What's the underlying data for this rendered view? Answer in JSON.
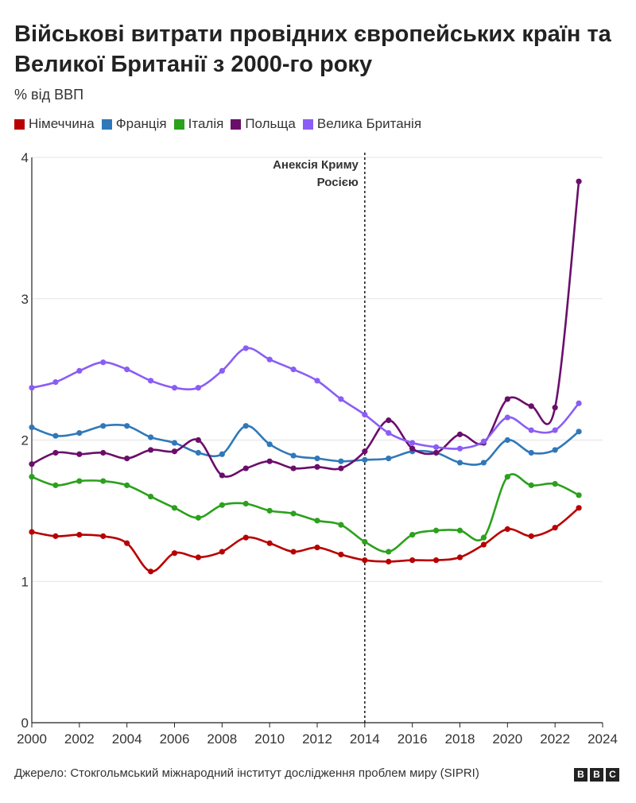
{
  "header": {
    "title": "Військові витрати провідних європейських країн та Великої Британії з 2000-го року",
    "subtitle": "% від ВВП"
  },
  "footer": {
    "source": "Джерело: Стокгольмський міжнародний інститут дослідження проблем миру (SIPRI)",
    "logo_letters": [
      "B",
      "B",
      "C"
    ]
  },
  "chart_data": {
    "type": "line",
    "title": "Військові витрати провідних європейських країн та Великої Британії з 2000-го року",
    "ylabel": "% від ВВП",
    "xlabel": "",
    "xlim": [
      2000,
      2024
    ],
    "ylim": [
      0,
      4
    ],
    "x_ticks": [
      2000,
      2002,
      2004,
      2006,
      2008,
      2010,
      2012,
      2014,
      2016,
      2018,
      2020,
      2022,
      2024
    ],
    "y_ticks": [
      0,
      1,
      2,
      3,
      4
    ],
    "grid": true,
    "legend_position": "top-left",
    "x": [
      2000,
      2001,
      2002,
      2003,
      2004,
      2005,
      2006,
      2007,
      2008,
      2009,
      2010,
      2011,
      2012,
      2013,
      2014,
      2015,
      2016,
      2017,
      2018,
      2019,
      2020,
      2021,
      2022,
      2023
    ],
    "series": [
      {
        "name": "Німеччина",
        "color": "#b80000",
        "values": [
          1.35,
          1.32,
          1.33,
          1.32,
          1.27,
          1.07,
          1.2,
          1.17,
          1.21,
          1.31,
          1.27,
          1.21,
          1.24,
          1.19,
          1.15,
          1.14,
          1.15,
          1.15,
          1.17,
          1.26,
          1.37,
          1.32,
          1.38,
          1.52
        ]
      },
      {
        "name": "Франція",
        "color": "#2f78b9",
        "values": [
          2.09,
          2.03,
          2.05,
          2.1,
          2.1,
          2.02,
          1.98,
          1.91,
          1.9,
          2.1,
          1.97,
          1.89,
          1.87,
          1.85,
          1.86,
          1.87,
          1.92,
          1.91,
          1.84,
          1.84,
          2.0,
          1.91,
          1.93,
          2.06
        ]
      },
      {
        "name": "Італія",
        "color": "#2ba11c",
        "values": [
          1.74,
          1.68,
          1.71,
          1.71,
          1.68,
          1.6,
          1.52,
          1.45,
          1.54,
          1.55,
          1.5,
          1.48,
          1.43,
          1.4,
          1.28,
          1.21,
          1.33,
          1.36,
          1.36,
          1.31,
          1.74,
          1.68,
          1.69,
          1.61
        ]
      },
      {
        "name": "Польща",
        "color": "#6b0e6b",
        "values": [
          1.83,
          1.91,
          1.9,
          1.91,
          1.87,
          1.93,
          1.92,
          2.0,
          1.75,
          1.8,
          1.85,
          1.8,
          1.81,
          1.8,
          1.92,
          2.14,
          1.94,
          1.91,
          2.04,
          1.98,
          2.29,
          2.24,
          2.23,
          3.83
        ]
      },
      {
        "name": "Велика Британія",
        "color": "#8a5df5",
        "values": [
          2.37,
          2.41,
          2.49,
          2.55,
          2.5,
          2.42,
          2.37,
          2.37,
          2.49,
          2.65,
          2.57,
          2.5,
          2.42,
          2.29,
          2.18,
          2.05,
          1.98,
          1.95,
          1.94,
          1.99,
          2.16,
          2.07,
          2.07,
          2.26
        ]
      }
    ],
    "annotations": [
      {
        "x": 2014,
        "text_lines": [
          "Анексія Криму",
          "Росією"
        ],
        "style": "dotted-vertical-line"
      }
    ]
  }
}
